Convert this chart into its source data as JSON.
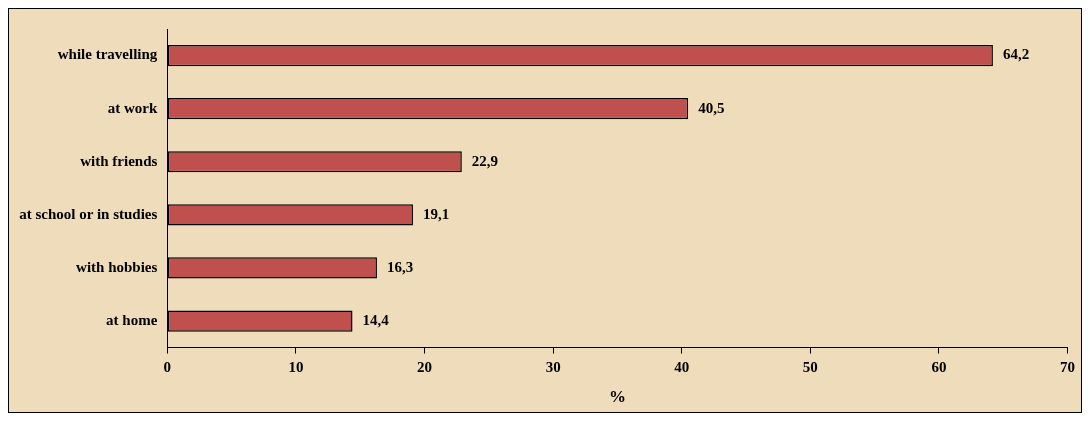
{
  "chart_data": {
    "type": "bar",
    "orientation": "horizontal",
    "xlabel": "%",
    "categories": [
      "while travelling",
      "at work",
      "with friends",
      "at school or in studies",
      "with hobbies",
      "at home"
    ],
    "values": [
      64.2,
      40.5,
      22.9,
      19.1,
      16.3,
      14.4
    ],
    "value_labels": [
      "64,2",
      "40,5",
      "22,9",
      "19,1",
      "16,3",
      "14,4"
    ],
    "color": "#c0504d",
    "xlim": [
      0,
      70
    ],
    "xticks": [
      0,
      10,
      20,
      30,
      40,
      50,
      60,
      70
    ],
    "grid": false,
    "legend": false
  }
}
